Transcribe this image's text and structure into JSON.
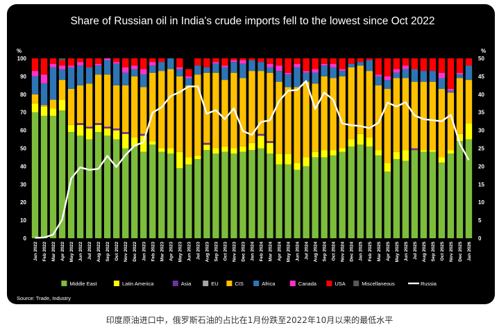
{
  "chart_data": {
    "type": "bar",
    "stacked": true,
    "title": "Share of Russian oil in India's crude imports fell to the lowest since Oct 2022",
    "ylabel_left": "%",
    "ylabel_right": "%",
    "ylim_left": [
      0,
      100
    ],
    "ylim_right": [
      0,
      50
    ],
    "yticks_left": [
      0,
      10,
      20,
      30,
      40,
      50,
      60,
      70,
      80,
      90,
      100
    ],
    "yticks_right": [
      0,
      5,
      10,
      15,
      20,
      25,
      30,
      35,
      40,
      45,
      50
    ],
    "source": "Source: Trade, Industry",
    "categories": [
      "Jan 2022",
      "Feb 2022",
      "Mar 2022",
      "Apr 2022",
      "May 2022",
      "Jun 2022",
      "Jul 2022",
      "Aug 2022",
      "Sep 2022",
      "Oct 2022",
      "Nov 2022",
      "Dec 2022",
      "Jan 2023",
      "Feb 2023",
      "Mar 2023",
      "Apr 2023",
      "May 2023",
      "Jun 2023",
      "Jul 2023",
      "Aug 2023",
      "Sep 2023",
      "Oct 2023",
      "Nov 2023",
      "Dec 2023",
      "Jan 2024",
      "Feb 2024",
      "Mar 2024",
      "Apr 2024",
      "May 2024",
      "Jun 2024",
      "Jul 2024",
      "Aug 2024",
      "Sep 2024",
      "Oct 2024",
      "Nov 2024",
      "Dec 2024",
      "Jan 2025",
      "Feb 2025",
      "Mar 2025",
      "Apr 2025",
      "May 2025",
      "Jun 2025",
      "Jul 2025",
      "Aug 2025",
      "Sep 2025",
      "Oct 2025",
      "Nov 2025",
      "Dec 2025",
      "Jan 2026"
    ],
    "series": [
      {
        "name": "Middle East",
        "color": "#7dbd3c",
        "values": [
          70,
          68,
          68,
          71,
          59,
          57,
          55,
          59,
          57,
          55,
          50,
          51,
          48,
          52,
          48,
          47,
          39,
          41,
          44,
          49,
          47,
          48,
          47,
          48,
          49,
          50,
          47,
          41,
          41,
          38,
          40,
          45,
          45,
          46,
          48,
          51,
          52,
          51,
          46,
          37,
          44,
          43,
          49,
          48,
          48,
          42,
          47,
          54,
          55
        ]
      },
      {
        "name": "Latin America",
        "color": "#ffff00",
        "values": [
          5,
          5,
          4,
          6,
          4,
          6,
          6,
          4,
          4,
          5,
          8,
          5,
          9,
          2,
          2,
          3,
          9,
          4,
          2,
          3,
          3,
          3,
          3,
          3,
          4,
          7,
          6,
          6,
          6,
          4,
          5,
          3,
          4,
          3,
          2,
          4,
          6,
          5,
          3,
          5,
          4,
          6,
          0,
          1,
          1,
          3,
          2,
          4,
          9
        ]
      },
      {
        "name": "Asia",
        "color": "#7030a0",
        "values": [
          0,
          0,
          0,
          0,
          0,
          1,
          1,
          1,
          1,
          1,
          1,
          0,
          1,
          0,
          0,
          0,
          0,
          0,
          0,
          1,
          0,
          0,
          0,
          0,
          0,
          1,
          1,
          0,
          0,
          0,
          0,
          0,
          0,
          0,
          0,
          0,
          0,
          0,
          0,
          0,
          0,
          0,
          1,
          0,
          0,
          0,
          0,
          0,
          0
        ]
      },
      {
        "name": "EU",
        "color": "#a6a6a6",
        "values": [
          0,
          0,
          0,
          0,
          0,
          0,
          0,
          0,
          0,
          0,
          0,
          0,
          0,
          0,
          0,
          0,
          0,
          0,
          0,
          0,
          0,
          0,
          0,
          0,
          0,
          0,
          0,
          0,
          0,
          0,
          0,
          0,
          0,
          0,
          0,
          0,
          0,
          0,
          0,
          0,
          0,
          0,
          0,
          0,
          0,
          0,
          0,
          0,
          0
        ]
      },
      {
        "name": "CIS",
        "color": "#ffc000",
        "values": [
          5,
          1,
          5,
          11,
          20,
          21,
          24,
          27,
          29,
          24,
          26,
          34,
          26,
          38,
          43,
          44,
          42,
          40,
          45,
          39,
          42,
          37,
          42,
          38,
          40,
          35,
          38,
          40,
          37,
          42,
          42,
          38,
          41,
          40,
          40,
          40,
          38,
          37,
          36,
          41,
          41,
          40,
          37,
          38,
          38,
          38,
          32,
          31,
          24
        ]
      },
      {
        "name": "Africa",
        "color": "#2e75b6",
        "values": [
          10,
          12,
          18,
          6,
          12,
          11,
          9,
          5,
          8,
          12,
          7,
          4,
          7,
          4,
          5,
          6,
          4,
          4,
          5,
          3,
          5,
          7,
          6,
          8,
          6,
          5,
          3,
          6,
          7,
          11,
          5,
          6,
          6,
          6,
          3,
          2,
          2,
          6,
          5,
          5,
          3,
          5,
          7,
          6,
          6,
          6,
          1,
          2,
          8
        ]
      },
      {
        "name": "Canada",
        "color": "#ff33cc",
        "values": [
          3,
          5,
          2,
          2,
          1,
          2,
          0,
          1,
          1,
          1,
          3,
          2,
          3,
          2,
          0,
          0,
          1,
          1,
          0,
          0,
          1,
          1,
          1,
          2,
          0,
          0,
          2,
          3,
          1,
          2,
          1,
          2,
          1,
          2,
          1,
          0,
          0,
          0,
          1,
          2,
          2,
          2,
          0,
          0,
          0,
          3,
          1,
          1,
          0
        ]
      },
      {
        "name": "USA",
        "color": "#ff0000",
        "values": [
          7,
          9,
          3,
          3,
          4,
          2,
          5,
          3,
          0,
          2,
          5,
          4,
          6,
          2,
          2,
          0,
          5,
          4,
          4,
          5,
          2,
          4,
          1,
          1,
          1,
          2,
          3,
          4,
          8,
          3,
          7,
          6,
          3,
          3,
          6,
          3,
          2,
          1,
          9,
          10,
          6,
          4,
          6,
          7,
          7,
          8,
          17,
          8,
          4
        ]
      },
      {
        "name": "Miscellaneous",
        "color": "#595959",
        "values": [
          0,
          0,
          0,
          1,
          0,
          0,
          0,
          0,
          0,
          0,
          0,
          0,
          0,
          0,
          0,
          0,
          0,
          0,
          0,
          0,
          0,
          0,
          0,
          0,
          0,
          0,
          0,
          0,
          0,
          0,
          0,
          0,
          0,
          0,
          0,
          0,
          0,
          0,
          0,
          0,
          0,
          0,
          0,
          0,
          0,
          0,
          0,
          0,
          0
        ]
      }
    ],
    "line_series": {
      "name": "Russia",
      "color": "#ffffff",
      "axis": "right",
      "values": [
        0.1,
        0.2,
        1.0,
        5.2,
        16.6,
        19.7,
        19.0,
        19.3,
        22.9,
        19.8,
        23.1,
        25.7,
        26.7,
        34.9,
        36.4,
        39.5,
        40.6,
        42.2,
        42.2,
        34.6,
        35.6,
        33.1,
        36.1,
        29.8,
        28.7,
        32.3,
        32.8,
        38.1,
        41.0,
        41.2,
        43.7,
        35.9,
        40.5,
        38.5,
        31.9,
        31.4,
        31.2,
        30.6,
        32.1,
        37.7,
        36.6,
        37.8,
        34.1,
        33.1,
        32.8,
        32.5,
        34.3,
        26.3,
        21.7
      ]
    }
  },
  "caption": "印度原油进口中，俄罗斯石油的占比在1月份跌至2022年10月以来的最低水平"
}
